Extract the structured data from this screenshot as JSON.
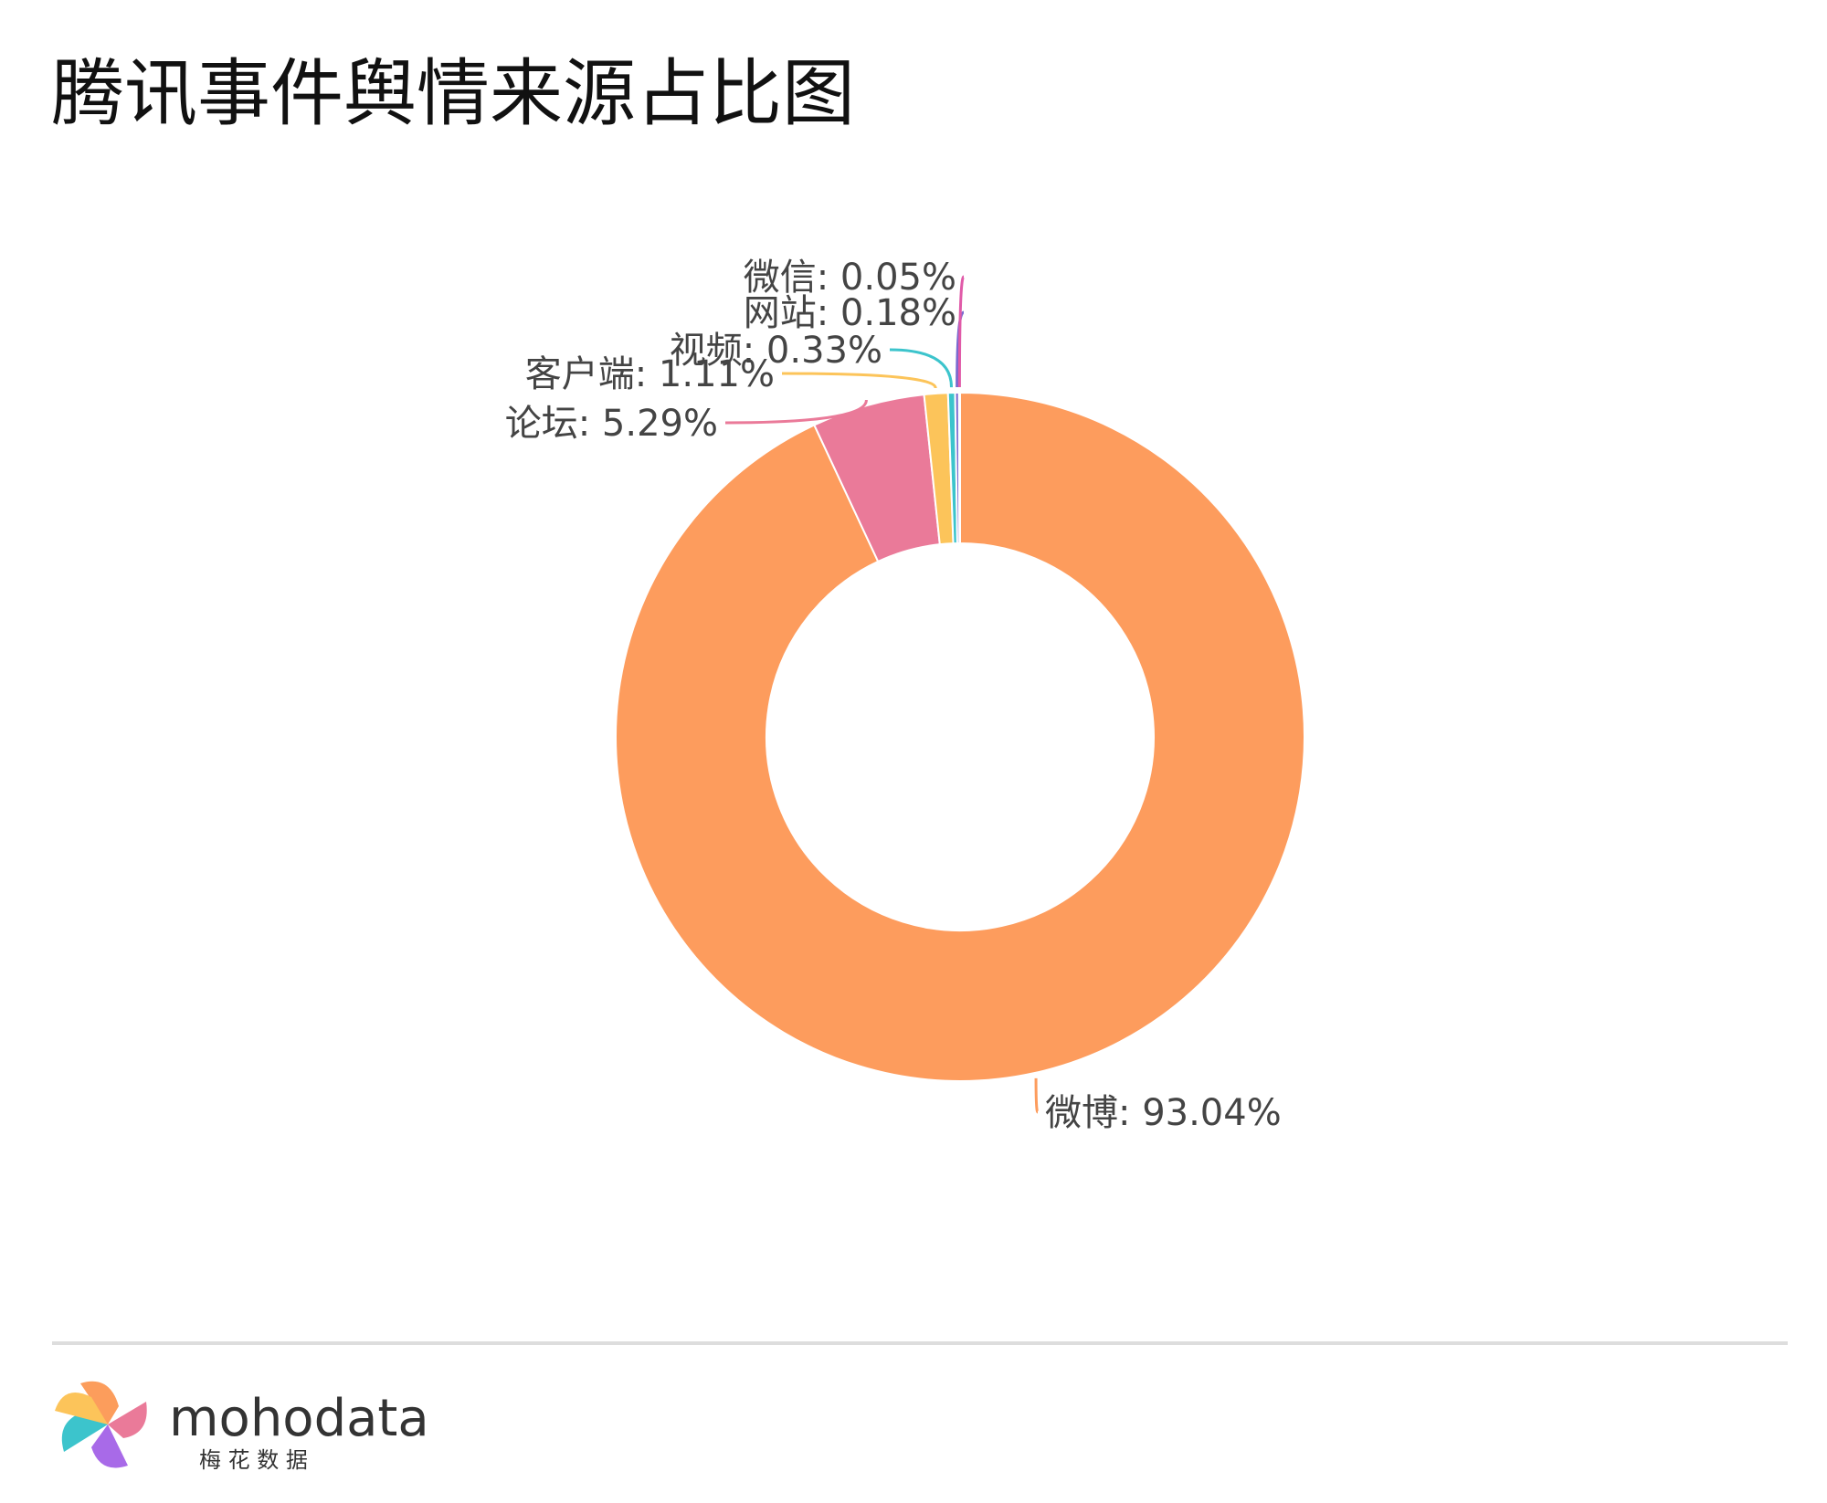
{
  "chart_data": {
    "type": "pie",
    "title": "腾讯事件舆情来源占比图",
    "values": [
      93.04,
      5.29,
      1.11,
      0.33,
      0.18,
      0.05
    ],
    "value_labels": [
      "微博: 93.04%",
      "论坛: 5.29%",
      "客户端: 1.11%",
      "视频: 0.33%",
      "网站: 0.18%",
      "微信: 0.05%"
    ],
    "colors": [
      "#fd9c5d",
      "#ea7a99",
      "#fcc45a",
      "#3cc4cc",
      "#7a6ad0",
      "#e05aa8"
    ]
  },
  "footer": {
    "brand": "mohodata",
    "tagline": "梅 花 数 据"
  }
}
